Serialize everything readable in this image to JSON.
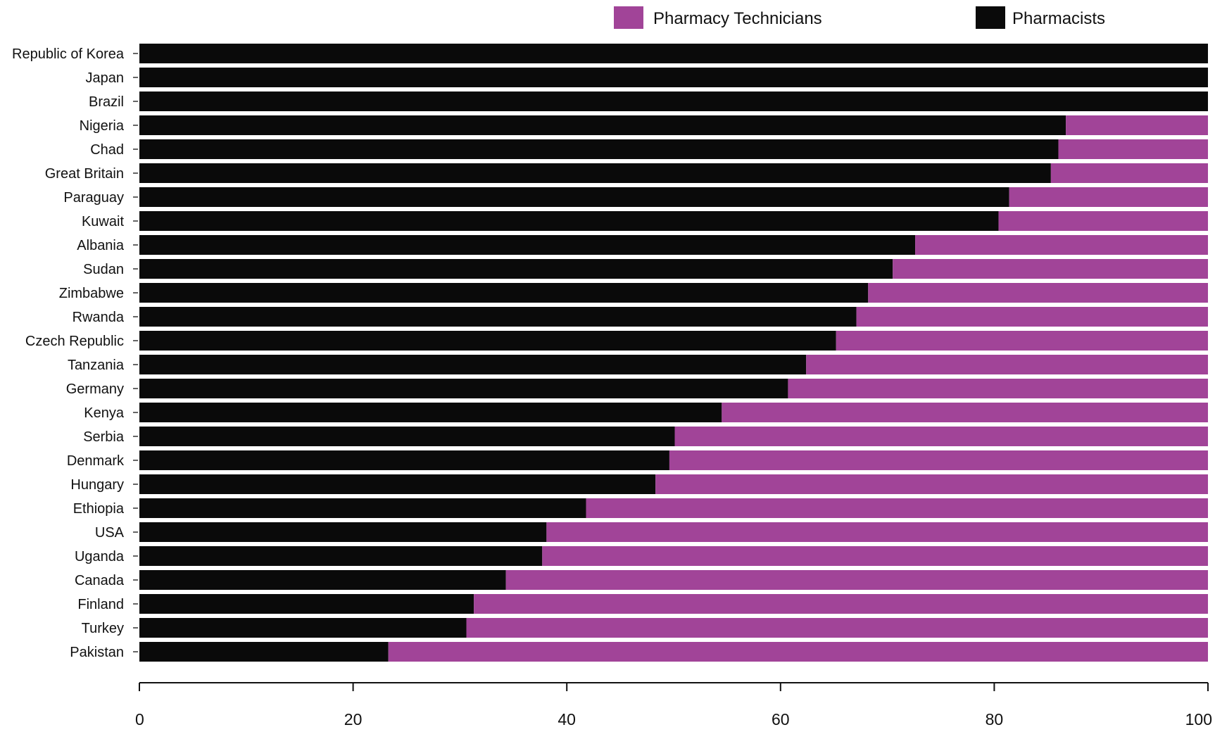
{
  "chart_data": {
    "type": "bar",
    "orientation": "horizontal",
    "stacked": true,
    "title": "",
    "xlabel": "",
    "ylabel": "",
    "xlim": [
      0,
      100
    ],
    "xticks": [
      0,
      20,
      40,
      60,
      80,
      100
    ],
    "grid": false,
    "legend_position": "top-right",
    "categories": [
      "Republic of Korea",
      "Japan",
      "Brazil",
      "Nigeria",
      "Chad",
      "Great Britain",
      "Paraguay",
      "Kuwait",
      "Albania",
      "Sudan",
      "Zimbabwe",
      "Rwanda",
      "Czech Republic",
      "Tanzania",
      "Germany",
      "Kenya",
      "Serbia",
      "Denmark",
      "Hungary",
      "Ethiopia",
      "USA",
      "Uganda",
      "Canada",
      "Finland",
      "Turkey",
      "Pakistan"
    ],
    "series": [
      {
        "name": "Pharmacists",
        "color": "#0a0a0a",
        "values": [
          100,
          100,
          100,
          86.7,
          86.0,
          85.3,
          81.4,
          80.4,
          72.6,
          70.5,
          68.2,
          67.1,
          65.2,
          62.4,
          60.7,
          54.5,
          50.1,
          49.6,
          48.3,
          41.8,
          38.1,
          37.7,
          34.3,
          31.3,
          30.6,
          23.3
        ]
      },
      {
        "name": "Pharmacy Technicians",
        "color": "#a14498",
        "values": [
          0,
          0,
          0,
          13.3,
          14.0,
          14.7,
          18.6,
          19.6,
          27.4,
          29.5,
          31.8,
          32.9,
          34.8,
          37.6,
          39.3,
          45.5,
          49.9,
          50.4,
          51.7,
          58.2,
          61.9,
          62.3,
          65.7,
          68.7,
          69.4,
          76.7
        ]
      }
    ],
    "legend": [
      {
        "name": "Pharmacy Technicians",
        "color": "#a14498"
      },
      {
        "name": "Pharmacists",
        "color": "#0a0a0a"
      }
    ]
  }
}
